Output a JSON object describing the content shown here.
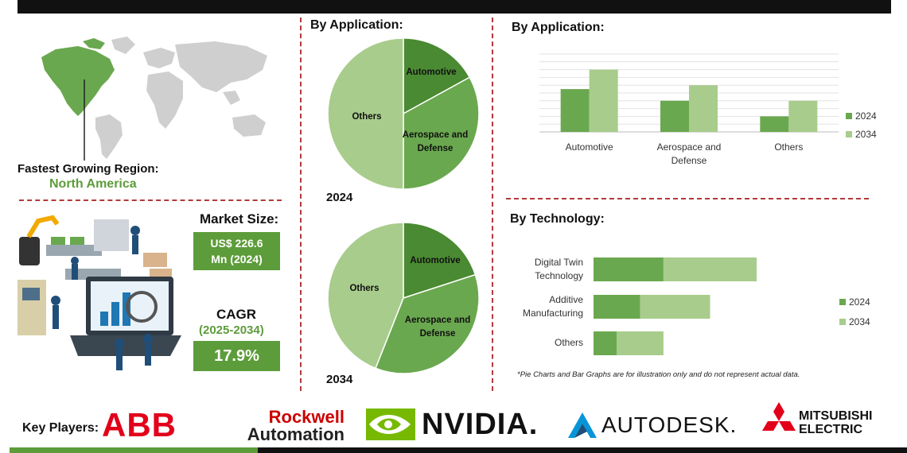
{
  "colors": {
    "dark_green": "#4a8a32",
    "mid_green": "#6aa84f",
    "light_green": "#a8cc8c",
    "red": "#b33a3a",
    "accent": "#5d9c3a"
  },
  "left": {
    "region_label": "Fastest Growing Region:",
    "region_value": "North America",
    "market_size_label": "Market Size:",
    "market_size_value_line1": "US$ 226.6",
    "market_size_value_line2": "Mn (2024)",
    "cagr_label": "CAGR",
    "cagr_period": "(2025-2034)",
    "cagr_value": "17.9%"
  },
  "pies": {
    "heading": "By Application:",
    "pie_2024_year": "2024",
    "pie_2034_year": "2034"
  },
  "bar_app": {
    "heading": "By Application:"
  },
  "bar_tech": {
    "heading": "By Technology:",
    "footnote": "*Pie Charts and Bar Graphs are for illustration only and do not represent actual data."
  },
  "key_players": {
    "label": "Key Players:",
    "logos": [
      "ABB",
      "Rockwell",
      "Automation",
      "NVIDIA.",
      "AUTODESK.",
      "MITSUBISHI",
      "ELECTRIC"
    ]
  },
  "chart_data": [
    {
      "type": "pie",
      "year": "2024",
      "categories": [
        "Automotive",
        "Aerospace and Defense",
        "Others"
      ],
      "values": [
        17,
        33,
        50
      ]
    },
    {
      "type": "pie",
      "year": "2034",
      "categories": [
        "Automotive",
        "Aerospace and Defense",
        "Others"
      ],
      "values": [
        20,
        36,
        44
      ]
    },
    {
      "type": "bar",
      "categories": [
        "Automotive",
        "Aerospace and Defense",
        "Others"
      ],
      "series": [
        {
          "name": "2024",
          "values": [
            5.5,
            4,
            2
          ]
        },
        {
          "name": "2034",
          "values": [
            8,
            6,
            4
          ]
        }
      ],
      "ylim": [
        0,
        10
      ],
      "grid": true,
      "legend": "right"
    },
    {
      "type": "bar",
      "orientation": "horizontal",
      "categories": [
        "Digital Twin Technology",
        "Additive Manufacturing",
        "Others"
      ],
      "series": [
        {
          "name": "2024",
          "values": [
            3,
            2,
            1
          ]
        },
        {
          "name": "2034",
          "values": [
            7,
            5,
            3
          ]
        }
      ],
      "xlim": [
        0,
        10
      ],
      "legend": "right"
    }
  ]
}
